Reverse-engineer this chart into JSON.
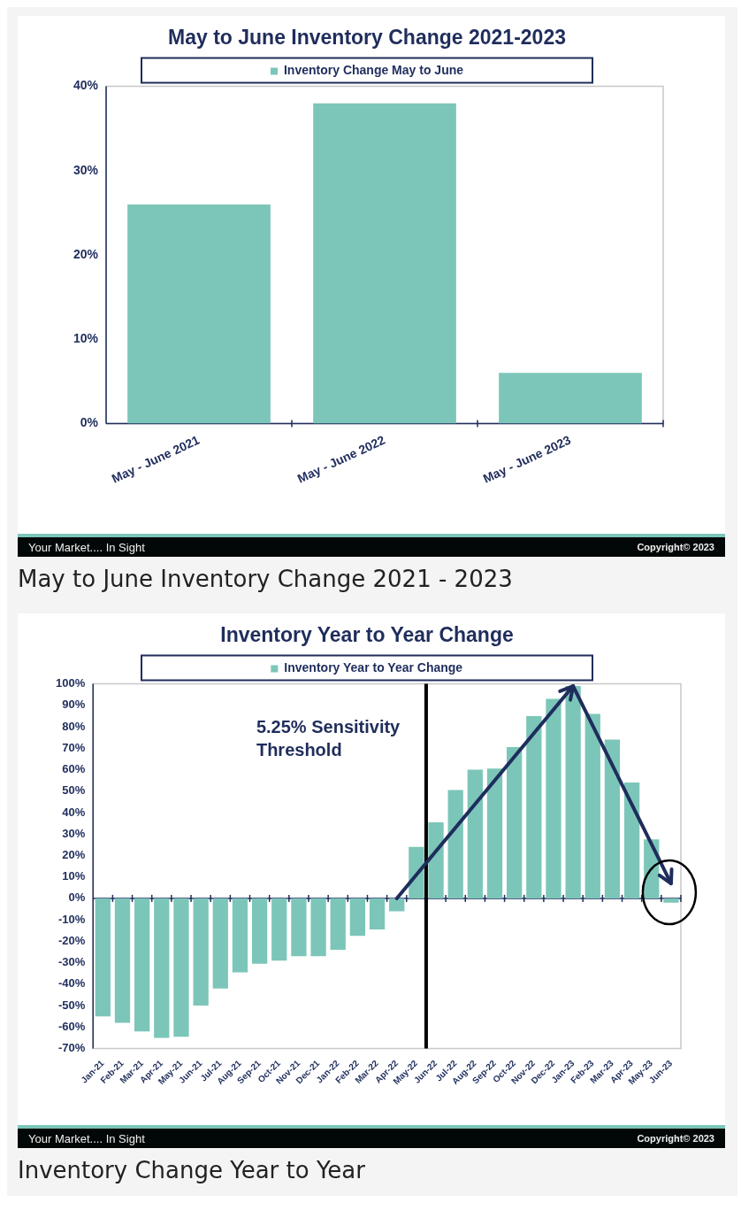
{
  "chart_data": [
    {
      "type": "bar",
      "title": "May to June Inventory Change 2021-2023",
      "categories": [
        "May - June 2021",
        "May - June 2022",
        "May - June 2023"
      ],
      "series": [
        {
          "name": "Inventory Change May to June",
          "color": "#7cc6b9",
          "values": [
            26,
            38,
            6
          ]
        }
      ],
      "ylim": [
        0,
        40
      ],
      "yticks": [
        {
          "value": 0,
          "label": "0%"
        },
        {
          "value": 10,
          "label": "10%"
        },
        {
          "value": 20,
          "label": "20%"
        },
        {
          "value": 30,
          "label": "30%"
        },
        {
          "value": 40,
          "label": "40%"
        }
      ],
      "grid": false,
      "legend": "top",
      "annotations": [
        "Your Market.... In Sight",
        "Copyright© 2023",
        "May to June Inventory Change 2021 - 2023"
      ]
    },
    {
      "type": "bar",
      "title": "Inventory Year to Year Change",
      "categories": [
        "Jan-21",
        "Feb-21",
        "Mar-21",
        "Apr-21",
        "May-21",
        "Jun-21",
        "Jul-21",
        "Aug-21",
        "Sep-21",
        "Oct-21",
        "Nov-21",
        "Dec-21",
        "Jan-22",
        "Feb-22",
        "Mar-22",
        "Apr-22",
        "May-22",
        "Jun-22",
        "Jul-22",
        "Aug-22",
        "Sep-22",
        "Oct-22",
        "Nov-22",
        "Dec-22",
        "Jan-23",
        "Feb-23",
        "Mar-23",
        "Apr-23",
        "May-23",
        "Jun-23"
      ],
      "series": [
        {
          "name": "Inventory Year to Year Change",
          "color": "#7cc6b9",
          "values": [
            -55,
            -58,
            -62,
            -65,
            -64.5,
            -50,
            -42,
            -34.5,
            -30.5,
            -29,
            -27,
            -27,
            -24,
            -17.5,
            -14.5,
            -6,
            24,
            35.5,
            50.5,
            60,
            60.5,
            70.5,
            85,
            93,
            99,
            86,
            74,
            54,
            27.5,
            -2
          ]
        }
      ],
      "ylim": [
        -70,
        100
      ],
      "yticks": [
        {
          "value": -70,
          "label": "-70%"
        },
        {
          "value": -60,
          "label": "-60%"
        },
        {
          "value": -50,
          "label": "-50%"
        },
        {
          "value": -40,
          "label": "-40%"
        },
        {
          "value": -30,
          "label": "-30%"
        },
        {
          "value": -20,
          "label": "-20%"
        },
        {
          "value": -10,
          "label": "-10%"
        },
        {
          "value": 0,
          "label": "0%"
        },
        {
          "value": 10,
          "label": "10%"
        },
        {
          "value": 20,
          "label": "20%"
        },
        {
          "value": 30,
          "label": "30%"
        },
        {
          "value": 40,
          "label": "40%"
        },
        {
          "value": 50,
          "label": "50%"
        },
        {
          "value": 60,
          "label": "60%"
        },
        {
          "value": 70,
          "label": "70%"
        },
        {
          "value": 80,
          "label": "80%"
        },
        {
          "value": 90,
          "label": "90%"
        },
        {
          "value": 100,
          "label": "100%"
        }
      ],
      "grid": false,
      "legend": "top",
      "ref_lines": [
        {
          "axis": "x",
          "value": "Jun-22",
          "label": "5.25% Sensitivity Threshold",
          "color": "#000000"
        }
      ],
      "annotations": [
        "Your Market.... In Sight",
        "Copyright© 2023",
        "Inventory Change Year to Year"
      ]
    }
  ]
}
